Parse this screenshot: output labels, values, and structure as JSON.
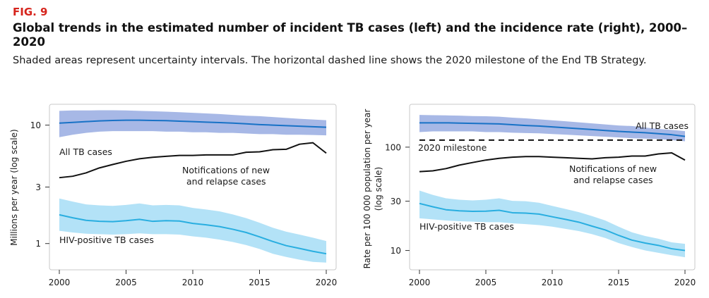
{
  "figure": {
    "label": "FIG. 9",
    "title": "Global trends in the estimated number of incident TB cases (left) and the incidence rate (right), 2000–2020",
    "subtitle": "Shaded areas represent uncertainty intervals. The horizontal dashed line shows the 2020 milestone of the End TB Strategy."
  },
  "colors": {
    "all_tb_band": "#a7b8e6",
    "all_tb_line": "#1872c6",
    "hiv_band": "#b3e2f7",
    "hiv_line": "#29aee0",
    "notifications_line": "#111111",
    "milestone_line": "#111111"
  },
  "chart_data": [
    {
      "type": "line",
      "scale": "log",
      "ylabel": "Millions per year (log scale)",
      "xlabel": "",
      "xlim": [
        2000,
        2020
      ],
      "ylim": [
        0.6,
        15
      ],
      "x_ticks": [
        2000,
        2005,
        2010,
        2015,
        2020
      ],
      "y_ticks": [
        1,
        3,
        10
      ],
      "x": [
        2000,
        2001,
        2002,
        2003,
        2004,
        2005,
        2006,
        2007,
        2008,
        2009,
        2010,
        2011,
        2012,
        2013,
        2014,
        2015,
        2016,
        2017,
        2018,
        2019,
        2020
      ],
      "series": [
        {
          "name": "All TB cases",
          "key": "all_tb",
          "values": [
            10.4,
            10.55,
            10.7,
            10.85,
            10.95,
            11.0,
            11.0,
            10.95,
            10.9,
            10.8,
            10.7,
            10.6,
            10.5,
            10.4,
            10.25,
            10.1,
            10.0,
            9.9,
            9.8,
            9.7,
            9.6
          ],
          "lower": [
            7.9,
            8.3,
            8.6,
            8.8,
            8.9,
            8.9,
            8.9,
            8.9,
            8.8,
            8.8,
            8.7,
            8.7,
            8.6,
            8.6,
            8.5,
            8.4,
            8.4,
            8.3,
            8.3,
            8.25,
            8.2
          ],
          "upper": [
            13.2,
            13.3,
            13.3,
            13.35,
            13.35,
            13.3,
            13.2,
            13.1,
            13.0,
            12.85,
            12.7,
            12.55,
            12.4,
            12.2,
            12.0,
            11.9,
            11.7,
            11.5,
            11.3,
            11.15,
            11.0
          ]
        },
        {
          "name": "Notifications of new and relapse cases",
          "key": "notifications",
          "values": [
            3.6,
            3.7,
            3.95,
            4.35,
            4.65,
            4.95,
            5.2,
            5.35,
            5.45,
            5.55,
            5.55,
            5.6,
            5.6,
            5.6,
            5.9,
            5.95,
            6.2,
            6.25,
            6.9,
            7.1,
            5.8
          ]
        },
        {
          "name": "HIV-positive TB cases",
          "key": "hiv",
          "values": [
            1.75,
            1.65,
            1.57,
            1.54,
            1.53,
            1.56,
            1.6,
            1.54,
            1.56,
            1.55,
            1.48,
            1.44,
            1.39,
            1.32,
            1.24,
            1.14,
            1.04,
            0.96,
            0.91,
            0.86,
            0.82
          ],
          "lower": [
            1.28,
            1.24,
            1.21,
            1.2,
            1.19,
            1.2,
            1.22,
            1.2,
            1.2,
            1.19,
            1.15,
            1.12,
            1.08,
            1.03,
            0.97,
            0.9,
            0.82,
            0.77,
            0.73,
            0.7,
            0.69
          ],
          "upper": [
            2.4,
            2.26,
            2.14,
            2.1,
            2.08,
            2.12,
            2.18,
            2.1,
            2.12,
            2.1,
            2.0,
            1.94,
            1.87,
            1.76,
            1.64,
            1.5,
            1.36,
            1.26,
            1.19,
            1.12,
            1.05
          ]
        }
      ],
      "labels": {
        "all_tb": "All TB cases",
        "notifications_1": "Notifications of new",
        "notifications_2": "and relapse cases",
        "hiv": "HIV-positive TB cases"
      }
    },
    {
      "type": "line",
      "scale": "log",
      "ylabel": "Rate per 100 000 population per year (log scale)",
      "xlabel": "",
      "xlim": [
        2000,
        2020
      ],
      "ylim": [
        6.5,
        260
      ],
      "x_ticks": [
        2000,
        2005,
        2010,
        2015,
        2020
      ],
      "y_ticks": [
        10,
        30,
        100
      ],
      "milestone": {
        "value": 117,
        "label": "2020 milestone"
      },
      "x": [
        2000,
        2001,
        2002,
        2003,
        2004,
        2005,
        2006,
        2007,
        2008,
        2009,
        2010,
        2011,
        2012,
        2013,
        2014,
        2015,
        2016,
        2017,
        2018,
        2019,
        2020
      ],
      "series": [
        {
          "name": "All TB cases",
          "key": "all_tb",
          "values": [
            172,
            172,
            172,
            171,
            170,
            169,
            168,
            165,
            162,
            160,
            157,
            154,
            151,
            148,
            145,
            142,
            140,
            138,
            135,
            132,
            127
          ],
          "lower": [
            140,
            142,
            142,
            142,
            142,
            140,
            140,
            138,
            137,
            136,
            134,
            132,
            130,
            128,
            126,
            124,
            122,
            121,
            120,
            117,
            114
          ],
          "upper": [
            205,
            204,
            203,
            202,
            200,
            199,
            197,
            193,
            190,
            186,
            182,
            178,
            174,
            170,
            166,
            162,
            160,
            155,
            150,
            147,
            143
          ]
        },
        {
          "name": "Notifications of new and relapse cases",
          "key": "notifications",
          "values": [
            58,
            59,
            62,
            67,
            71,
            75,
            78,
            80,
            81,
            81,
            80,
            79,
            78,
            77,
            79,
            80,
            82,
            82,
            86,
            88,
            75
          ]
        },
        {
          "name": "HIV-positive TB cases",
          "key": "hiv",
          "values": [
            28.5,
            26.5,
            24.8,
            24.2,
            23.9,
            24.0,
            24.5,
            23.2,
            23.0,
            22.5,
            21.2,
            20.0,
            18.8,
            17.2,
            15.8,
            14.0,
            12.6,
            11.8,
            11.2,
            10.4,
            10.0
          ],
          "lower": [
            20.5,
            20.0,
            19.5,
            19.2,
            19.0,
            18.8,
            18.8,
            18.3,
            18.0,
            17.6,
            17.0,
            16.2,
            15.4,
            14.4,
            13.2,
            11.8,
            10.8,
            10.0,
            9.5,
            9.0,
            8.6
          ],
          "upper": [
            38,
            34.5,
            32.0,
            31.0,
            30.5,
            31.0,
            32.0,
            30.2,
            30.0,
            29.0,
            27.0,
            25.2,
            23.5,
            21.5,
            19.5,
            17.0,
            15.0,
            13.8,
            13.0,
            12.0,
            11.6
          ]
        }
      ],
      "labels": {
        "all_tb": "All TB cases",
        "notifications_1": "Notifications of new",
        "notifications_2": "and relapse cases",
        "hiv": "HIV-positive TB cases"
      }
    }
  ]
}
